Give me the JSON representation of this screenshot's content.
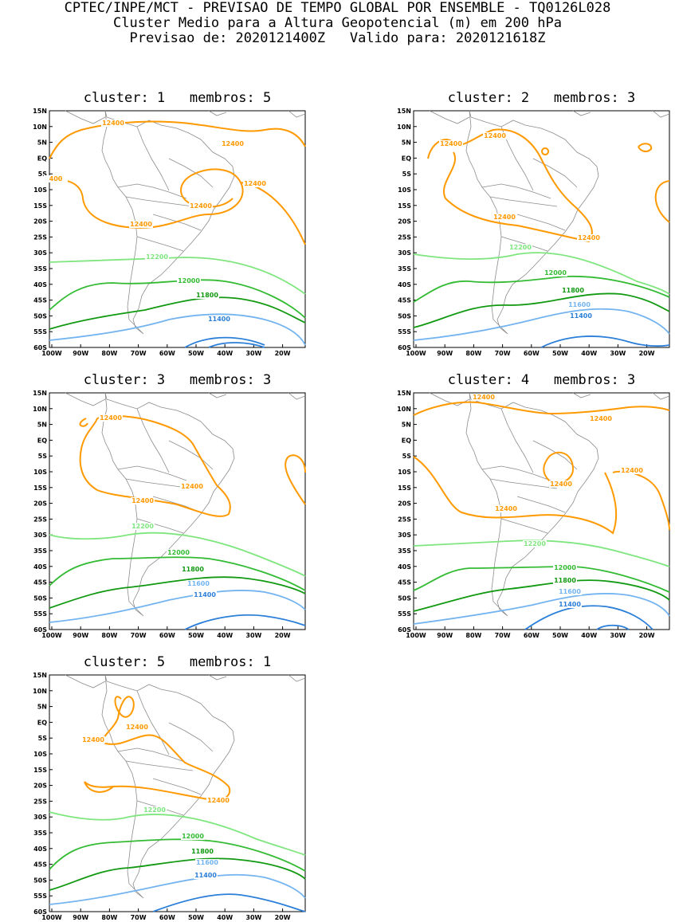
{
  "header": {
    "line1": "CPTEC/INPE/MCT - PREVISAO DE TEMPO GLOBAL POR ENSEMBLE - TQ0126L028",
    "line2": "Cluster Medio para a Altura Geopotencial (m) em 200 hPa",
    "line3": "Previsao de: 2020121400Z   Valido para: 2020121618Z"
  },
  "axes": {
    "lat_labels": [
      "15N",
      "10N",
      "5N",
      "EQ",
      "5S",
      "10S",
      "15S",
      "20S",
      "25S",
      "30S",
      "35S",
      "40S",
      "45S",
      "50S",
      "55S",
      "60S"
    ],
    "lon_labels": [
      "100W",
      "90W",
      "80W",
      "70W",
      "60W",
      "50W",
      "40W",
      "30W",
      "20W"
    ]
  },
  "colors": {
    "c12400": "#ff9900",
    "c12200": "#7fe67f",
    "c12000": "#33bb33",
    "c11800": "#119911",
    "c11600": "#73b4f0",
    "c11400": "#2b7fd8",
    "coast": "#8c8c8c"
  },
  "panels": [
    {
      "title": "cluster: 1   membros: 5",
      "labels": [
        {
          "text": "12400",
          "c": "c12400"
        },
        {
          "text": "12400",
          "c": "c12400"
        },
        {
          "text": "12400",
          "c": "c12400"
        },
        {
          "text": "12400",
          "c": "c12400"
        },
        {
          "text": "12400",
          "c": "c12400"
        },
        {
          "text": "400",
          "c": "c12400"
        },
        {
          "text": "12200",
          "c": "c12200"
        },
        {
          "text": "12000",
          "c": "c12000"
        },
        {
          "text": "11800",
          "c": "c11800"
        },
        {
          "text": "11400",
          "c": "c11400"
        }
      ]
    },
    {
      "title": "cluster: 2   membros: 3",
      "labels": [
        {
          "text": "12400",
          "c": "c12400"
        },
        {
          "text": "12400",
          "c": "c12400"
        },
        {
          "text": "12400",
          "c": "c12400"
        },
        {
          "text": "12400",
          "c": "c12400"
        },
        {
          "text": "12200",
          "c": "c12200"
        },
        {
          "text": "12000",
          "c": "c12000"
        },
        {
          "text": "11800",
          "c": "c11800"
        },
        {
          "text": "11600",
          "c": "c11600"
        },
        {
          "text": "11400",
          "c": "c11400"
        }
      ]
    },
    {
      "title": "cluster: 3   membros: 3",
      "labels": [
        {
          "text": "12400",
          "c": "c12400"
        },
        {
          "text": "12400",
          "c": "c12400"
        },
        {
          "text": "12400",
          "c": "c12400"
        },
        {
          "text": "12200",
          "c": "c12200"
        },
        {
          "text": "12000",
          "c": "c12000"
        },
        {
          "text": "11800",
          "c": "c11800"
        },
        {
          "text": "11600",
          "c": "c11600"
        },
        {
          "text": "11400",
          "c": "c11400"
        }
      ]
    },
    {
      "title": "cluster: 4   membros: 3",
      "labels": [
        {
          "text": "12400",
          "c": "c12400"
        },
        {
          "text": "12400",
          "c": "c12400"
        },
        {
          "text": "12400",
          "c": "c12400"
        },
        {
          "text": "12400",
          "c": "c12400"
        },
        {
          "text": "12400",
          "c": "c12400"
        },
        {
          "text": "12200",
          "c": "c12200"
        },
        {
          "text": "12000",
          "c": "c12000"
        },
        {
          "text": "11800",
          "c": "c11800"
        },
        {
          "text": "11600",
          "c": "c11600"
        },
        {
          "text": "11400",
          "c": "c11400"
        }
      ]
    },
    {
      "title": "cluster: 5   membros: 1",
      "labels": [
        {
          "text": "12400",
          "c": "c12400"
        },
        {
          "text": "12400",
          "c": "c12400"
        },
        {
          "text": "12400",
          "c": "c12400"
        },
        {
          "text": "12200",
          "c": "c12200"
        },
        {
          "text": "12000",
          "c": "c12000"
        },
        {
          "text": "11800",
          "c": "c11800"
        },
        {
          "text": "11600",
          "c": "c11600"
        },
        {
          "text": "11400",
          "c": "c11400"
        }
      ]
    }
  ]
}
